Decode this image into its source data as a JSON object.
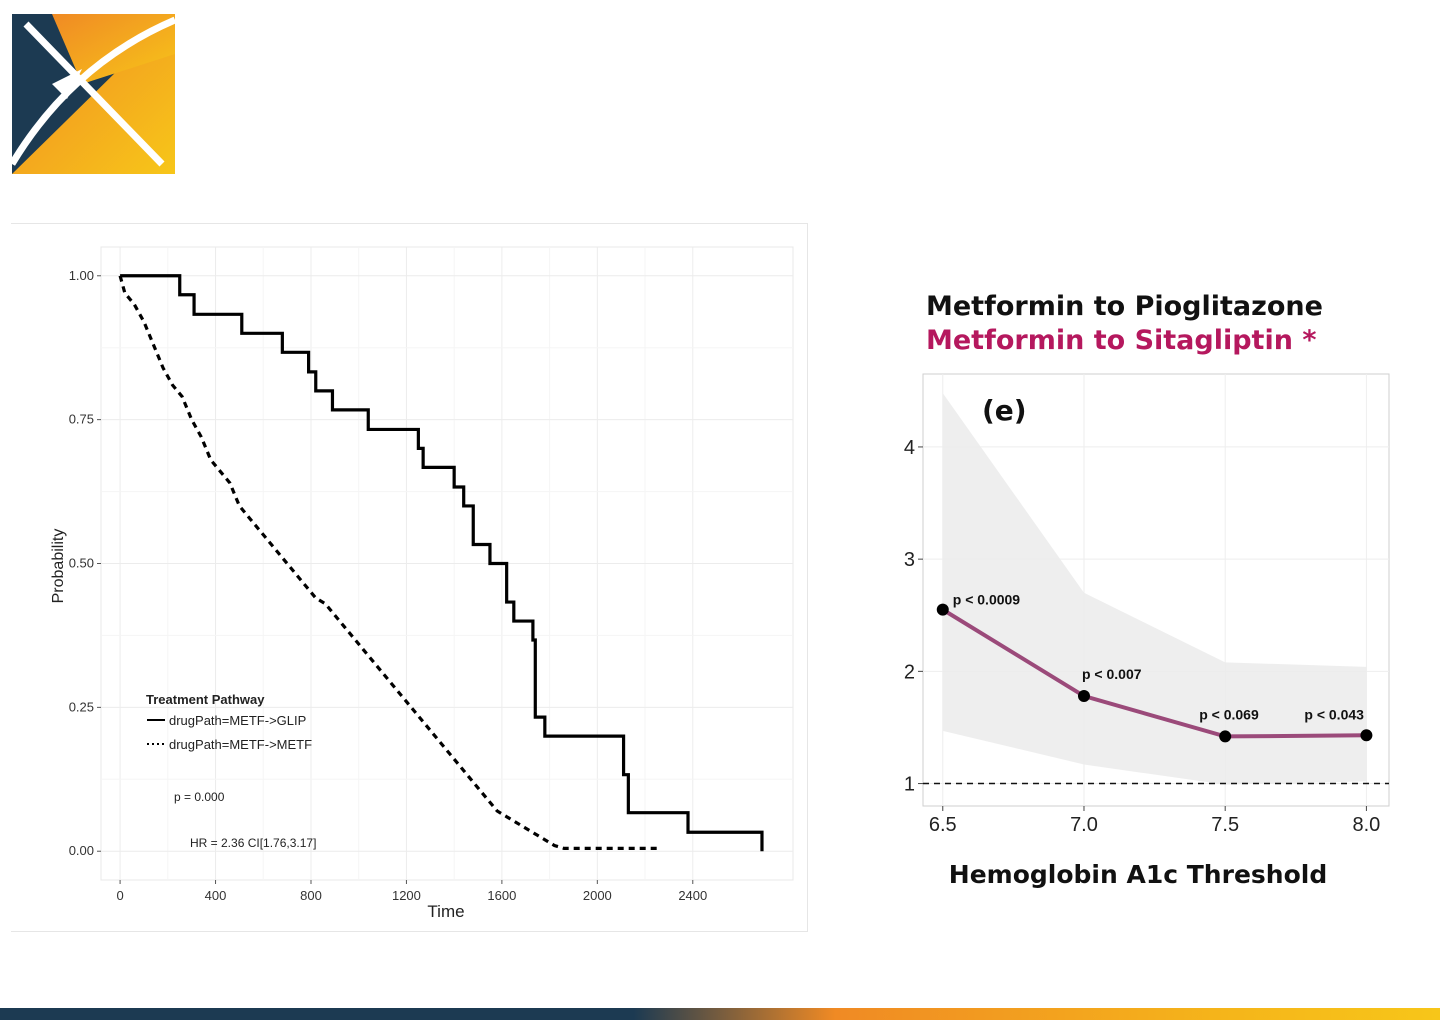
{
  "logo": {
    "name": "x-logo",
    "colors": {
      "navy": "#1c3a52",
      "orange": "#f08a24",
      "gold": "#f7c619"
    }
  },
  "chart_data": [
    {
      "type": "line",
      "chart_kind": "kaplan-meier",
      "xlabel": "Time",
      "ylabel": "Probability",
      "xlim": [
        -80,
        2820
      ],
      "ylim": [
        -0.05,
        1.05
      ],
      "xticks": [
        0,
        400,
        800,
        1200,
        1600,
        2000,
        2400
      ],
      "xtick_labels": [
        "0",
        "400",
        "800",
        "1200",
        "1600",
        "2000",
        "2400"
      ],
      "yticks": [
        0,
        0.25,
        0.5,
        0.75,
        1
      ],
      "ytick_labels": [
        "0.00",
        "0.25",
        "0.50",
        "0.75",
        "1.00"
      ],
      "grid": true,
      "legend": {
        "title": "Treatment Pathway",
        "position": "bottom-left",
        "entries": [
          "drugPath=METF->GLIP",
          "drugPath=METF->METF"
        ]
      },
      "annotations": [
        "p = 0.000",
        "HR = 2.36 CI[1.76,3.17]"
      ],
      "series": [
        {
          "name": "drugPath=METF->GLIP",
          "style": "solid",
          "x": [
            0,
            250,
            310,
            510,
            680,
            790,
            820,
            890,
            1040,
            1250,
            1270,
            1400,
            1440,
            1480,
            1550,
            1620,
            1650,
            1730,
            1740,
            1780,
            2110,
            2130,
            2380,
            2690
          ],
          "y": [
            1.0,
            0.967,
            0.933,
            0.9,
            0.867,
            0.833,
            0.8,
            0.767,
            0.733,
            0.7,
            0.667,
            0.633,
            0.6,
            0.533,
            0.5,
            0.433,
            0.4,
            0.367,
            0.233,
            0.2,
            0.133,
            0.067,
            0.033,
            0.0
          ]
        },
        {
          "name": "drugPath=METF->METF",
          "style": "dashed",
          "x": [
            0,
            20,
            60,
            100,
            140,
            180,
            220,
            260,
            300,
            340,
            380,
            420,
            460,
            500,
            540,
            580,
            620,
            660,
            700,
            740,
            780,
            820,
            860,
            900,
            940,
            980,
            1020,
            1060,
            1100,
            1140,
            1180,
            1220,
            1260,
            1300,
            1340,
            1380,
            1420,
            1460,
            1500,
            1540,
            1580,
            1620,
            1660,
            1700,
            1740,
            1780,
            1820,
            1860,
            1900,
            2000,
            2100,
            2250
          ],
          "y": [
            1.0,
            0.97,
            0.95,
            0.92,
            0.88,
            0.84,
            0.81,
            0.79,
            0.75,
            0.72,
            0.68,
            0.66,
            0.64,
            0.6,
            0.58,
            0.56,
            0.54,
            0.52,
            0.5,
            0.48,
            0.46,
            0.44,
            0.43,
            0.41,
            0.39,
            0.37,
            0.35,
            0.33,
            0.31,
            0.29,
            0.27,
            0.25,
            0.23,
            0.21,
            0.19,
            0.17,
            0.15,
            0.13,
            0.11,
            0.09,
            0.07,
            0.06,
            0.05,
            0.04,
            0.03,
            0.02,
            0.01,
            0.005,
            0.005,
            0.005,
            0.005,
            0.005
          ]
        }
      ]
    },
    {
      "type": "line",
      "title_lines": [
        {
          "text": "Metformin to Pioglitazone",
          "color": "#111111"
        },
        {
          "text": "Metformin to Sitagliptin *",
          "color": "#b5185e"
        }
      ],
      "panel_label": "(e)",
      "xlabel": "Hemoglobin A1c Threshold",
      "ylabel": "",
      "xlim": [
        6.43,
        8.08
      ],
      "ylim": [
        0.8,
        4.65
      ],
      "xticks": [
        6.5,
        7.0,
        7.5,
        8.0
      ],
      "xtick_labels": [
        "6.5",
        "7.0",
        "7.5",
        "8.0"
      ],
      "yticks": [
        1,
        2,
        3,
        4
      ],
      "ytick_labels": [
        "1",
        "2",
        "3",
        "4"
      ],
      "grid": true,
      "reference_line": {
        "y": 1,
        "style": "dashed"
      },
      "series": [
        {
          "x": [
            6.5,
            7.0,
            7.5,
            8.0
          ],
          "y": [
            2.55,
            1.78,
            1.42,
            1.43
          ],
          "lower": [
            1.47,
            1.17,
            0.99,
            1.02
          ],
          "upper": [
            4.48,
            2.7,
            2.08,
            2.04
          ],
          "labels": [
            "p < 0.0009",
            "p < 0.007",
            "p < 0.069",
            "p < 0.043"
          ],
          "color": "#9b4a7a"
        }
      ]
    }
  ]
}
